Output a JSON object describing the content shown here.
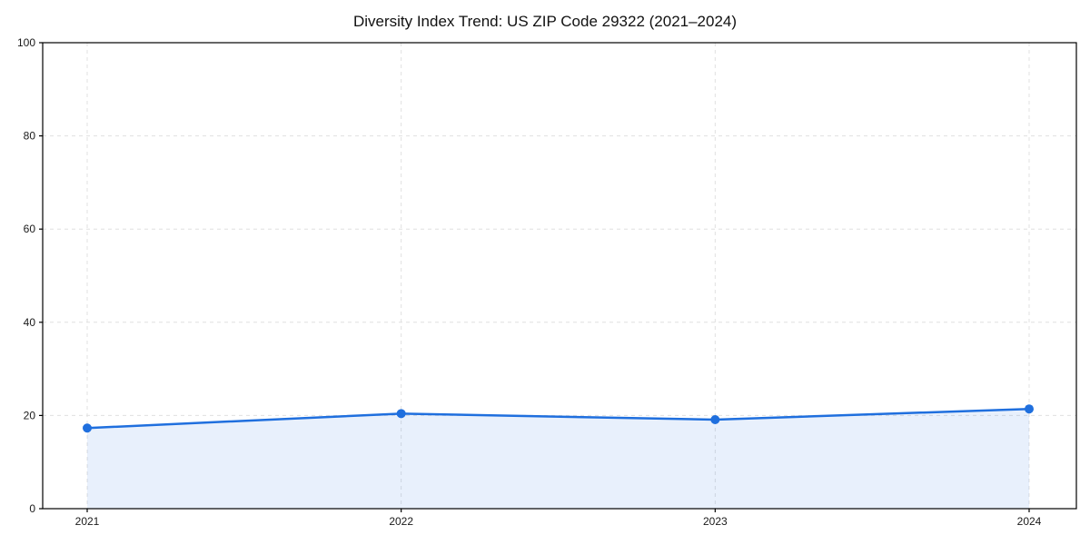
{
  "chart_data": {
    "type": "line",
    "title": "Diversity Index Trend: US ZIP Code 29322 (2021–2024)",
    "x": [
      "2021",
      "2022",
      "2023",
      "2024"
    ],
    "series": [
      {
        "name": "Diversity Index",
        "values": [
          17.3,
          20.4,
          19.1,
          21.4
        ]
      }
    ],
    "xlabel": "",
    "ylabel": "",
    "ylim": [
      0,
      100
    ],
    "yticks": [
      0,
      20,
      40,
      60,
      80,
      100
    ],
    "grid": "dashed",
    "legend": "none",
    "area_fill": true,
    "colors": {
      "line": "#1f6fde",
      "marker": "#1f6fde",
      "area": "rgba(31,111,222,0.10)",
      "grid": "#e0e0e0",
      "spine": "#000000",
      "tick_label": "#1a1a1a",
      "background": "#ffffff"
    }
  }
}
